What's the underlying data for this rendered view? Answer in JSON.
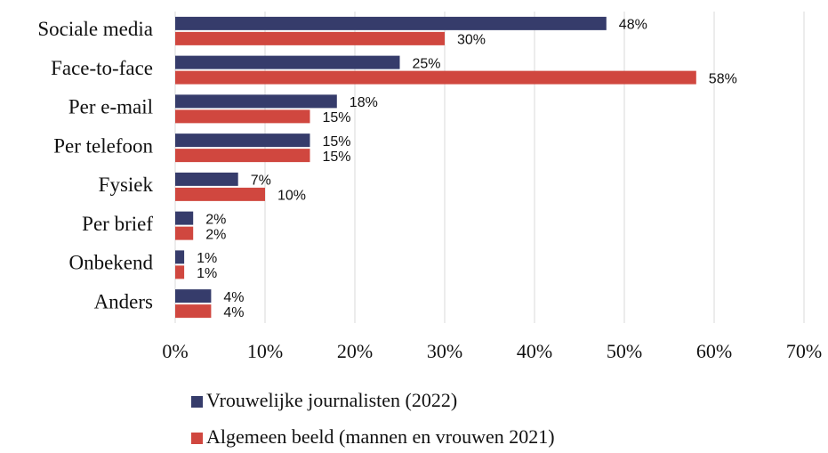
{
  "chart_data": {
    "type": "bar",
    "orientation": "horizontal",
    "categories": [
      "Sociale media",
      "Face-to-face",
      "Per e-mail",
      "Per telefoon",
      "Fysiek",
      "Per brief",
      "Onbekend",
      "Anders"
    ],
    "series": [
      {
        "name": "Vrouwelijke journalisten (2022)",
        "color": "#363c6b",
        "values": [
          48,
          25,
          18,
          15,
          7,
          2,
          1,
          4
        ],
        "value_labels": [
          "48%",
          "25%",
          "18%",
          "15%",
          "7%",
          "2%",
          "1%",
          "4%"
        ]
      },
      {
        "name": "Algemeen beeld (mannen en vrouwen 2021)",
        "color": "#d0473f",
        "values": [
          30,
          58,
          15,
          15,
          10,
          2,
          1,
          4
        ],
        "value_labels": [
          "30%",
          "58%",
          "15%",
          "15%",
          "10%",
          "2%",
          "1%",
          "4%"
        ]
      }
    ],
    "xlim": [
      0,
      70
    ],
    "xticks": [
      {
        "value": 0,
        "label": "0%"
      },
      {
        "value": 10,
        "label": "10%"
      },
      {
        "value": 20,
        "label": "20%"
      },
      {
        "value": 30,
        "label": "30%"
      },
      {
        "value": 40,
        "label": "40%"
      },
      {
        "value": 50,
        "label": "50%"
      },
      {
        "value": 60,
        "label": "60%"
      },
      {
        "value": 70,
        "label": "70%"
      }
    ],
    "grid": true,
    "legend": "bottom"
  }
}
